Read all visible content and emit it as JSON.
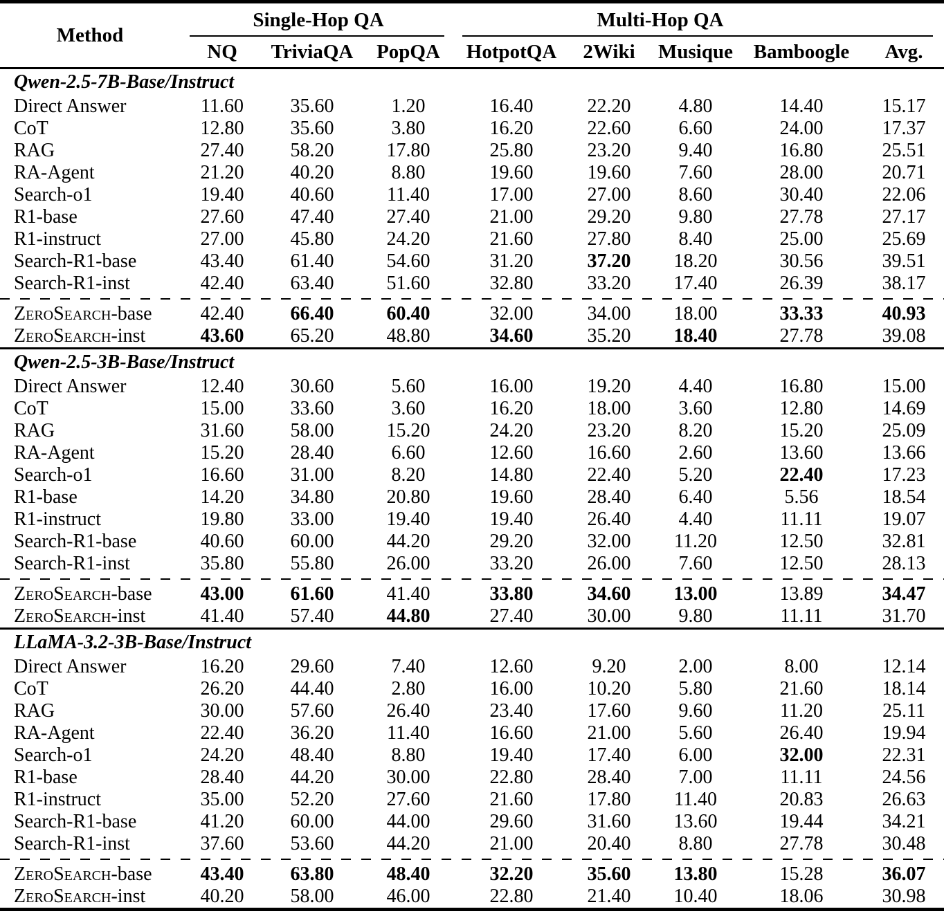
{
  "table": {
    "header": {
      "method": "Method",
      "group_single": "Single-Hop QA",
      "group_multi": "Multi-Hop QA",
      "cols": [
        "NQ",
        "TriviaQA",
        "PopQA",
        "HotpotQA",
        "2Wiki",
        "Musique",
        "Bamboogle",
        "Avg."
      ]
    },
    "colors": {
      "text": "#000000",
      "background": "#ffffff",
      "rule": "#000000"
    },
    "sections": [
      {
        "title": "Qwen-2.5-7B-Base/Instruct",
        "rows": [
          {
            "method": "Direct Answer",
            "values": [
              "11.60",
              "35.60",
              "1.20",
              "16.40",
              "22.20",
              "4.80",
              "14.40",
              "15.17"
            ],
            "bold": []
          },
          {
            "method": "CoT",
            "values": [
              "12.80",
              "35.60",
              "3.80",
              "16.20",
              "22.60",
              "6.60",
              "24.00",
              "17.37"
            ],
            "bold": []
          },
          {
            "method": "RAG",
            "values": [
              "27.40",
              "58.20",
              "17.80",
              "25.80",
              "23.20",
              "9.40",
              "16.80",
              "25.51"
            ],
            "bold": []
          },
          {
            "method": "RA-Agent",
            "values": [
              "21.20",
              "40.20",
              "8.80",
              "19.60",
              "19.60",
              "7.60",
              "28.00",
              "20.71"
            ],
            "bold": []
          },
          {
            "method": "Search-o1",
            "values": [
              "19.40",
              "40.60",
              "11.40",
              "17.00",
              "27.00",
              "8.60",
              "30.40",
              "22.06"
            ],
            "bold": []
          },
          {
            "method": "R1-base",
            "values": [
              "27.60",
              "47.40",
              "27.40",
              "21.00",
              "29.20",
              "9.80",
              "27.78",
              "27.17"
            ],
            "bold": []
          },
          {
            "method": "R1-instruct",
            "values": [
              "27.00",
              "45.80",
              "24.20",
              "21.60",
              "27.80",
              "8.40",
              "25.00",
              "25.69"
            ],
            "bold": []
          },
          {
            "method": "Search-R1-base",
            "values": [
              "43.40",
              "61.40",
              "54.60",
              "31.20",
              "37.20",
              "18.20",
              "30.56",
              "39.51"
            ],
            "bold": [
              4
            ]
          },
          {
            "method": "Search-R1-inst",
            "values": [
              "42.40",
              "63.40",
              "51.60",
              "32.80",
              "33.20",
              "17.40",
              "26.39",
              "38.17"
            ],
            "bold": []
          }
        ],
        "zs_rows": [
          {
            "method_sc": "ZeroSearch",
            "method_suffix": "-base",
            "values": [
              "42.40",
              "66.40",
              "60.40",
              "32.00",
              "34.00",
              "18.00",
              "33.33",
              "40.93"
            ],
            "bold": [
              1,
              2,
              6,
              7
            ]
          },
          {
            "method_sc": "ZeroSearch",
            "method_suffix": "-inst",
            "values": [
              "43.60",
              "65.20",
              "48.80",
              "34.60",
              "35.20",
              "18.40",
              "27.78",
              "39.08"
            ],
            "bold": [
              0,
              3,
              5
            ]
          }
        ]
      },
      {
        "title": "Qwen-2.5-3B-Base/Instruct",
        "rows": [
          {
            "method": "Direct Answer",
            "values": [
              "12.40",
              "30.60",
              "5.60",
              "16.00",
              "19.20",
              "4.40",
              "16.80",
              "15.00"
            ],
            "bold": []
          },
          {
            "method": "CoT",
            "values": [
              "15.00",
              "33.60",
              "3.60",
              "16.20",
              "18.00",
              "3.60",
              "12.80",
              "14.69"
            ],
            "bold": []
          },
          {
            "method": "RAG",
            "values": [
              "31.60",
              "58.00",
              "15.20",
              "24.20",
              "23.20",
              "8.20",
              "15.20",
              "25.09"
            ],
            "bold": []
          },
          {
            "method": "RA-Agent",
            "values": [
              "15.20",
              "28.40",
              "6.60",
              "12.60",
              "16.60",
              "2.60",
              "13.60",
              "13.66"
            ],
            "bold": []
          },
          {
            "method": "Search-o1",
            "values": [
              "16.60",
              "31.00",
              "8.20",
              "14.80",
              "22.40",
              "5.20",
              "22.40",
              "17.23"
            ],
            "bold": [
              6
            ]
          },
          {
            "method": "R1-base",
            "values": [
              "14.20",
              "34.80",
              "20.80",
              "19.60",
              "28.40",
              "6.40",
              "5.56",
              "18.54"
            ],
            "bold": []
          },
          {
            "method": "R1-instruct",
            "values": [
              "19.80",
              "33.00",
              "19.40",
              "19.40",
              "26.40",
              "4.40",
              "11.11",
              "19.07"
            ],
            "bold": []
          },
          {
            "method": "Search-R1-base",
            "values": [
              "40.60",
              "60.00",
              "44.20",
              "29.20",
              "32.00",
              "11.20",
              "12.50",
              "32.81"
            ],
            "bold": []
          },
          {
            "method": "Search-R1-inst",
            "values": [
              "35.80",
              "55.80",
              "26.00",
              "33.20",
              "26.00",
              "7.60",
              "12.50",
              "28.13"
            ],
            "bold": []
          }
        ],
        "zs_rows": [
          {
            "method_sc": "ZeroSearch",
            "method_suffix": "-base",
            "values": [
              "43.00",
              "61.60",
              "41.40",
              "33.80",
              "34.60",
              "13.00",
              "13.89",
              "34.47"
            ],
            "bold": [
              0,
              1,
              3,
              4,
              5,
              7
            ]
          },
          {
            "method_sc": "ZeroSearch",
            "method_suffix": "-inst",
            "values": [
              "41.40",
              "57.40",
              "44.80",
              "27.40",
              "30.00",
              "9.80",
              "11.11",
              "31.70"
            ],
            "bold": [
              2
            ]
          }
        ]
      },
      {
        "title": "LLaMA-3.2-3B-Base/Instruct",
        "rows": [
          {
            "method": "Direct Answer",
            "values": [
              "16.20",
              "29.60",
              "7.40",
              "12.60",
              "9.20",
              "2.00",
              "8.00",
              "12.14"
            ],
            "bold": []
          },
          {
            "method": "CoT",
            "values": [
              "26.20",
              "44.40",
              "2.80",
              "16.00",
              "10.20",
              "5.80",
              "21.60",
              "18.14"
            ],
            "bold": []
          },
          {
            "method": "RAG",
            "values": [
              "30.00",
              "57.60",
              "26.40",
              "23.40",
              "17.60",
              "9.60",
              "11.20",
              "25.11"
            ],
            "bold": []
          },
          {
            "method": "RA-Agent",
            "values": [
              "22.40",
              "36.20",
              "11.40",
              "16.60",
              "21.00",
              "5.60",
              "26.40",
              "19.94"
            ],
            "bold": []
          },
          {
            "method": "Search-o1",
            "values": [
              "24.20",
              "48.40",
              "8.80",
              "19.40",
              "17.40",
              "6.00",
              "32.00",
              "22.31"
            ],
            "bold": [
              6
            ]
          },
          {
            "method": "R1-base",
            "values": [
              "28.40",
              "44.20",
              "30.00",
              "22.80",
              "28.40",
              "7.00",
              "11.11",
              "24.56"
            ],
            "bold": []
          },
          {
            "method": "R1-instruct",
            "values": [
              "35.00",
              "52.20",
              "27.60",
              "21.60",
              "17.80",
              "11.40",
              "20.83",
              "26.63"
            ],
            "bold": []
          },
          {
            "method": "Search-R1-base",
            "values": [
              "41.20",
              "60.00",
              "44.00",
              "29.60",
              "31.60",
              "13.60",
              "19.44",
              "34.21"
            ],
            "bold": []
          },
          {
            "method": "Search-R1-inst",
            "values": [
              "37.60",
              "53.60",
              "44.20",
              "21.00",
              "20.40",
              "8.80",
              "27.78",
              "30.48"
            ],
            "bold": []
          }
        ],
        "zs_rows": [
          {
            "method_sc": "ZeroSearch",
            "method_suffix": "-base",
            "values": [
              "43.40",
              "63.80",
              "48.40",
              "32.20",
              "35.60",
              "13.80",
              "15.28",
              "36.07"
            ],
            "bold": [
              0,
              1,
              2,
              3,
              4,
              5,
              7
            ]
          },
          {
            "method_sc": "ZeroSearch",
            "method_suffix": "-inst",
            "values": [
              "40.20",
              "58.00",
              "46.00",
              "22.80",
              "21.40",
              "10.40",
              "18.06",
              "30.98"
            ],
            "bold": []
          }
        ]
      }
    ]
  }
}
